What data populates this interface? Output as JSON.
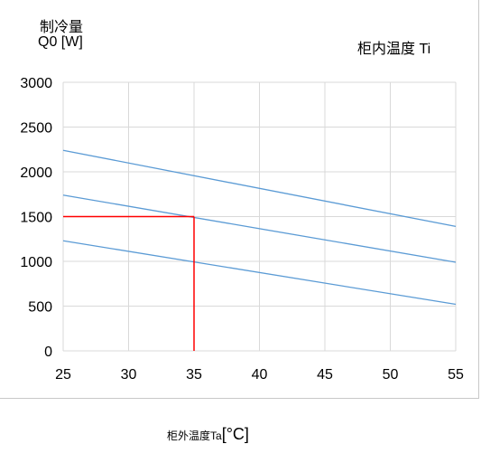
{
  "chart_data": {
    "type": "line",
    "ylabel_line1": "制冷量",
    "ylabel_line2": "Q0 [W]",
    "legend_title": "柜内温度  Ti",
    "xlabel": "柜外温度Ta",
    "xlabel_unit": "[°C]",
    "xlim": [
      25,
      55
    ],
    "ylim": [
      0,
      3000
    ],
    "xticks": [
      25,
      30,
      35,
      40,
      45,
      50,
      55
    ],
    "yticks": [
      0,
      500,
      1000,
      1500,
      2000,
      2500,
      3000
    ],
    "grid": true,
    "series": [
      {
        "x": [
          25,
          55
        ],
        "values": [
          2240,
          1390
        ],
        "color": "#5b9bd5"
      },
      {
        "x": [
          25,
          55
        ],
        "values": [
          1740,
          990
        ],
        "color": "#5b9bd5"
      },
      {
        "x": [
          25,
          55
        ],
        "values": [
          1230,
          520
        ],
        "color": "#5b9bd5"
      }
    ],
    "marker_lines": {
      "color": "#ff0000",
      "point": {
        "x": 35,
        "y": 1500
      }
    }
  }
}
